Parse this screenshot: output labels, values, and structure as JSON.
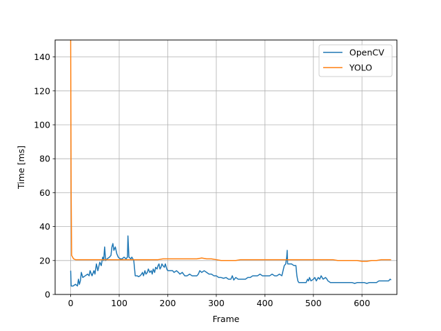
{
  "chart_data": {
    "type": "line",
    "xlabel": "Frame",
    "ylabel": "Time [ms]",
    "xlim": [
      -32,
      672
    ],
    "ylim": [
      0,
      150
    ],
    "xticks": [
      0,
      100,
      200,
      300,
      400,
      500,
      600
    ],
    "yticks": [
      0,
      20,
      40,
      60,
      80,
      100,
      120,
      140
    ],
    "grid": true,
    "legend_position": "top-right",
    "series": [
      {
        "name": "OpenCV",
        "color": "#1f77b4",
        "points": [
          [
            0,
            14
          ],
          [
            1,
            5
          ],
          [
            5,
            5
          ],
          [
            10,
            6
          ],
          [
            14,
            5
          ],
          [
            16,
            9
          ],
          [
            18,
            6
          ],
          [
            20,
            8
          ],
          [
            22,
            13
          ],
          [
            25,
            10
          ],
          [
            30,
            11
          ],
          [
            35,
            12
          ],
          [
            38,
            11
          ],
          [
            40,
            14
          ],
          [
            44,
            11
          ],
          [
            48,
            14
          ],
          [
            50,
            12
          ],
          [
            53,
            18
          ],
          [
            56,
            14
          ],
          [
            60,
            19
          ],
          [
            63,
            17
          ],
          [
            66,
            22
          ],
          [
            68,
            20
          ],
          [
            70,
            28
          ],
          [
            72,
            20
          ],
          [
            75,
            21
          ],
          [
            80,
            22
          ],
          [
            83,
            23
          ],
          [
            85,
            28
          ],
          [
            87,
            30
          ],
          [
            89,
            26
          ],
          [
            92,
            28
          ],
          [
            95,
            24
          ],
          [
            98,
            22
          ],
          [
            102,
            21
          ],
          [
            106,
            21
          ],
          [
            110,
            22
          ],
          [
            114,
            21
          ],
          [
            117,
            22
          ],
          [
            118,
            34.5
          ],
          [
            120,
            22
          ],
          [
            124,
            21
          ],
          [
            126,
            22
          ],
          [
            130,
            20
          ],
          [
            133,
            11
          ],
          [
            137,
            11
          ],
          [
            140,
            10.5
          ],
          [
            143,
            11
          ],
          [
            146,
            12
          ],
          [
            148,
            13
          ],
          [
            150,
            11
          ],
          [
            153,
            14
          ],
          [
            155,
            12
          ],
          [
            158,
            13
          ],
          [
            160,
            15
          ],
          [
            163,
            13
          ],
          [
            166,
            14
          ],
          [
            168,
            12
          ],
          [
            170,
            15
          ],
          [
            173,
            13
          ],
          [
            175,
            16
          ],
          [
            178,
            15
          ],
          [
            180,
            17
          ],
          [
            182,
            18
          ],
          [
            184,
            15
          ],
          [
            186,
            16
          ],
          [
            188,
            18
          ],
          [
            190,
            17
          ],
          [
            193,
            16
          ],
          [
            195,
            18
          ],
          [
            198,
            15
          ],
          [
            200,
            14
          ],
          [
            205,
            14
          ],
          [
            210,
            14
          ],
          [
            213,
            13
          ],
          [
            218,
            14
          ],
          [
            222,
            13
          ],
          [
            225,
            12
          ],
          [
            230,
            13
          ],
          [
            235,
            11
          ],
          [
            240,
            11
          ],
          [
            245,
            12
          ],
          [
            250,
            11
          ],
          [
            255,
            11
          ],
          [
            260,
            11
          ],
          [
            263,
            12
          ],
          [
            266,
            14
          ],
          [
            270,
            13
          ],
          [
            275,
            14
          ],
          [
            280,
            13
          ],
          [
            285,
            12
          ],
          [
            290,
            12
          ],
          [
            295,
            11
          ],
          [
            300,
            11
          ],
          [
            305,
            10
          ],
          [
            310,
            10
          ],
          [
            315,
            9.5
          ],
          [
            320,
            10
          ],
          [
            325,
            9
          ],
          [
            330,
            9
          ],
          [
            333,
            11
          ],
          [
            336,
            8.5
          ],
          [
            340,
            10
          ],
          [
            345,
            9
          ],
          [
            350,
            9
          ],
          [
            355,
            9
          ],
          [
            360,
            9
          ],
          [
            365,
            10
          ],
          [
            370,
            10
          ],
          [
            375,
            11
          ],
          [
            380,
            11
          ],
          [
            385,
            11
          ],
          [
            390,
            12
          ],
          [
            395,
            11
          ],
          [
            400,
            11
          ],
          [
            405,
            11
          ],
          [
            410,
            11
          ],
          [
            415,
            12
          ],
          [
            420,
            11
          ],
          [
            425,
            11
          ],
          [
            430,
            12
          ],
          [
            435,
            11
          ],
          [
            440,
            17
          ],
          [
            443,
            18
          ],
          [
            445,
            22
          ],
          [
            446,
            26
          ],
          [
            447,
            18
          ],
          [
            450,
            18
          ],
          [
            455,
            18
          ],
          [
            460,
            17
          ],
          [
            464,
            17
          ],
          [
            466,
            11
          ],
          [
            468,
            8
          ],
          [
            470,
            7
          ],
          [
            475,
            7
          ],
          [
            480,
            7
          ],
          [
            485,
            7
          ],
          [
            488,
            9
          ],
          [
            490,
            8
          ],
          [
            492,
            10
          ],
          [
            495,
            8
          ],
          [
            500,
            9
          ],
          [
            503,
            10
          ],
          [
            506,
            8
          ],
          [
            510,
            10
          ],
          [
            513,
            9
          ],
          [
            516,
            11
          ],
          [
            520,
            9
          ],
          [
            525,
            10
          ],
          [
            528,
            9
          ],
          [
            530,
            8
          ],
          [
            535,
            7
          ],
          [
            540,
            7
          ],
          [
            545,
            7
          ],
          [
            550,
            7
          ],
          [
            555,
            7
          ],
          [
            560,
            7
          ],
          [
            565,
            7
          ],
          [
            570,
            7
          ],
          [
            575,
            7
          ],
          [
            580,
            7
          ],
          [
            585,
            6.5
          ],
          [
            590,
            7
          ],
          [
            595,
            7
          ],
          [
            600,
            7
          ],
          [
            605,
            7
          ],
          [
            610,
            6.5
          ],
          [
            615,
            7
          ],
          [
            620,
            7
          ],
          [
            625,
            7
          ],
          [
            630,
            7
          ],
          [
            635,
            8
          ],
          [
            640,
            8
          ],
          [
            645,
            8
          ],
          [
            650,
            8
          ],
          [
            655,
            8
          ],
          [
            658,
            9
          ],
          [
            660,
            8.5
          ]
        ]
      },
      {
        "name": "YOLO",
        "color": "#ff7f0e",
        "points": [
          [
            0,
            150
          ],
          [
            1,
            60
          ],
          [
            2,
            23
          ],
          [
            4,
            22
          ],
          [
            6,
            21
          ],
          [
            10,
            20.5
          ],
          [
            20,
            20.5
          ],
          [
            30,
            20.5
          ],
          [
            40,
            20.5
          ],
          [
            50,
            20.5
          ],
          [
            60,
            20.5
          ],
          [
            70,
            20.5
          ],
          [
            80,
            20.5
          ],
          [
            90,
            20.5
          ],
          [
            100,
            20.5
          ],
          [
            110,
            20.5
          ],
          [
            120,
            20.5
          ],
          [
            130,
            20.5
          ],
          [
            140,
            20.5
          ],
          [
            150,
            20.5
          ],
          [
            160,
            20.5
          ],
          [
            170,
            20.5
          ],
          [
            180,
            20.5
          ],
          [
            190,
            21
          ],
          [
            200,
            21
          ],
          [
            210,
            21
          ],
          [
            220,
            21
          ],
          [
            230,
            21
          ],
          [
            240,
            21
          ],
          [
            250,
            21
          ],
          [
            260,
            21
          ],
          [
            270,
            21.5
          ],
          [
            280,
            21
          ],
          [
            290,
            21
          ],
          [
            300,
            20.5
          ],
          [
            310,
            20
          ],
          [
            320,
            20
          ],
          [
            330,
            20
          ],
          [
            340,
            20
          ],
          [
            350,
            20.5
          ],
          [
            360,
            20.5
          ],
          [
            370,
            20.5
          ],
          [
            380,
            20.5
          ],
          [
            390,
            20.5
          ],
          [
            400,
            20.5
          ],
          [
            410,
            20.5
          ],
          [
            420,
            20.5
          ],
          [
            430,
            20.5
          ],
          [
            440,
            20.5
          ],
          [
            450,
            20.5
          ],
          [
            460,
            20.5
          ],
          [
            470,
            20.5
          ],
          [
            480,
            20.5
          ],
          [
            490,
            20.5
          ],
          [
            500,
            20.5
          ],
          [
            510,
            20.5
          ],
          [
            520,
            20.5
          ],
          [
            530,
            20.5
          ],
          [
            540,
            20.5
          ],
          [
            550,
            20
          ],
          [
            560,
            20
          ],
          [
            570,
            20
          ],
          [
            580,
            20
          ],
          [
            590,
            20
          ],
          [
            600,
            19.5
          ],
          [
            610,
            19.5
          ],
          [
            620,
            20
          ],
          [
            630,
            20
          ],
          [
            640,
            20.5
          ],
          [
            650,
            20.5
          ],
          [
            660,
            20.5
          ]
        ]
      }
    ]
  }
}
